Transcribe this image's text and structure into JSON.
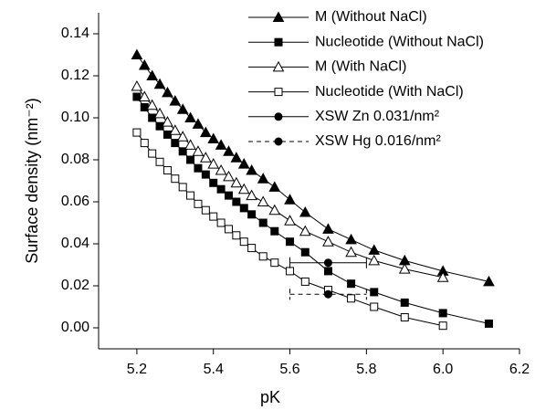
{
  "chart_data": {
    "type": "line",
    "x_label": "pK",
    "y_label": "Surface density (nm⁻²)",
    "xlim": [
      5.1,
      6.2
    ],
    "ylim": [
      -0.01,
      0.15
    ],
    "xticks": [
      5.2,
      5.4,
      5.6,
      5.8,
      {
        "value": 6,
        "label": "6.0"
      },
      6.2
    ],
    "yticks": [
      {
        "value": 0,
        "label": "0.00"
      },
      {
        "value": 0.02,
        "label": "0.02"
      },
      {
        "value": 0.04,
        "label": "0.04"
      },
      {
        "value": 0.06,
        "label": "0.06"
      },
      {
        "value": 0.08,
        "label": "0.08"
      },
      {
        "value": 0.1,
        "label": "0.10"
      },
      {
        "value": 0.12,
        "label": "0.12"
      },
      {
        "value": 0.14,
        "label": "0.14"
      }
    ],
    "series": [
      {
        "name": "M (Without NaCl)",
        "color": "#000000",
        "marker": "triangle",
        "filled": true,
        "dashed": false,
        "x": [
          5.2,
          5.22,
          5.24,
          5.26,
          5.28,
          5.3,
          5.32,
          5.34,
          5.36,
          5.38,
          5.4,
          5.42,
          5.44,
          5.46,
          5.48,
          5.5,
          5.53,
          5.56,
          5.6,
          5.64,
          5.7,
          5.76,
          5.82,
          5.9,
          6.0,
          6.12
        ],
        "values": [
          0.13,
          0.125,
          0.12,
          0.116,
          0.112,
          0.108,
          0.104,
          0.1,
          0.097,
          0.093,
          0.09,
          0.087,
          0.084,
          0.081,
          0.078,
          0.075,
          0.071,
          0.067,
          0.061,
          0.055,
          0.047,
          0.042,
          0.037,
          0.032,
          0.027,
          0.022
        ]
      },
      {
        "name": "Nucleotide (Without NaCl)",
        "color": "#000000",
        "marker": "square",
        "filled": true,
        "dashed": false,
        "x": [
          5.2,
          5.22,
          5.24,
          5.26,
          5.28,
          5.3,
          5.32,
          5.34,
          5.36,
          5.38,
          5.4,
          5.42,
          5.44,
          5.46,
          5.48,
          5.5,
          5.53,
          5.56,
          5.6,
          5.64,
          5.7,
          5.76,
          5.82,
          5.9,
          6.0,
          6.12
        ],
        "values": [
          0.11,
          0.105,
          0.1,
          0.096,
          0.092,
          0.088,
          0.084,
          0.08,
          0.076,
          0.073,
          0.069,
          0.066,
          0.063,
          0.06,
          0.057,
          0.054,
          0.05,
          0.046,
          0.041,
          0.036,
          0.027,
          0.021,
          0.017,
          0.012,
          0.007,
          0.002
        ]
      },
      {
        "name": "M (With NaCl)",
        "color": "#000000",
        "marker": "triangle",
        "filled": false,
        "dashed": false,
        "x": [
          5.2,
          5.22,
          5.24,
          5.26,
          5.28,
          5.3,
          5.32,
          5.34,
          5.36,
          5.38,
          5.4,
          5.42,
          5.44,
          5.46,
          5.48,
          5.5,
          5.53,
          5.56,
          5.6,
          5.64,
          5.7,
          5.76,
          5.82,
          5.9,
          6.0
        ],
        "values": [
          0.115,
          0.11,
          0.106,
          0.102,
          0.098,
          0.094,
          0.091,
          0.087,
          0.084,
          0.081,
          0.078,
          0.075,
          0.072,
          0.069,
          0.066,
          0.063,
          0.06,
          0.056,
          0.051,
          0.046,
          0.041,
          0.036,
          0.032,
          0.028,
          0.024
        ]
      },
      {
        "name": "Nucleotide (With NaCl)",
        "color": "#000000",
        "marker": "square",
        "filled": false,
        "dashed": false,
        "x": [
          5.2,
          5.22,
          5.24,
          5.26,
          5.28,
          5.3,
          5.32,
          5.34,
          5.36,
          5.38,
          5.4,
          5.42,
          5.44,
          5.46,
          5.48,
          5.5,
          5.53,
          5.56,
          5.6,
          5.64,
          5.7,
          5.76,
          5.82,
          5.9,
          6.0
        ],
        "values": [
          0.093,
          0.088,
          0.083,
          0.079,
          0.075,
          0.071,
          0.067,
          0.063,
          0.059,
          0.056,
          0.053,
          0.05,
          0.047,
          0.044,
          0.041,
          0.038,
          0.034,
          0.031,
          0.027,
          0.022,
          0.018,
          0.014,
          0.01,
          0.005,
          0.001
        ]
      },
      {
        "name": "XSW Zn 0.031/nm²",
        "color": "#000000",
        "marker": "circle",
        "filled": true,
        "dashed": false,
        "x": [
          5.7
        ],
        "values": [
          0.031
        ],
        "xerr": [
          0.1
        ]
      },
      {
        "name": "XSW Hg 0.016/nm²",
        "color": "#000000",
        "marker": "circle",
        "filled": true,
        "dashed": true,
        "x": [
          5.7
        ],
        "values": [
          0.016
        ],
        "xerr": [
          0.1
        ]
      }
    ]
  }
}
